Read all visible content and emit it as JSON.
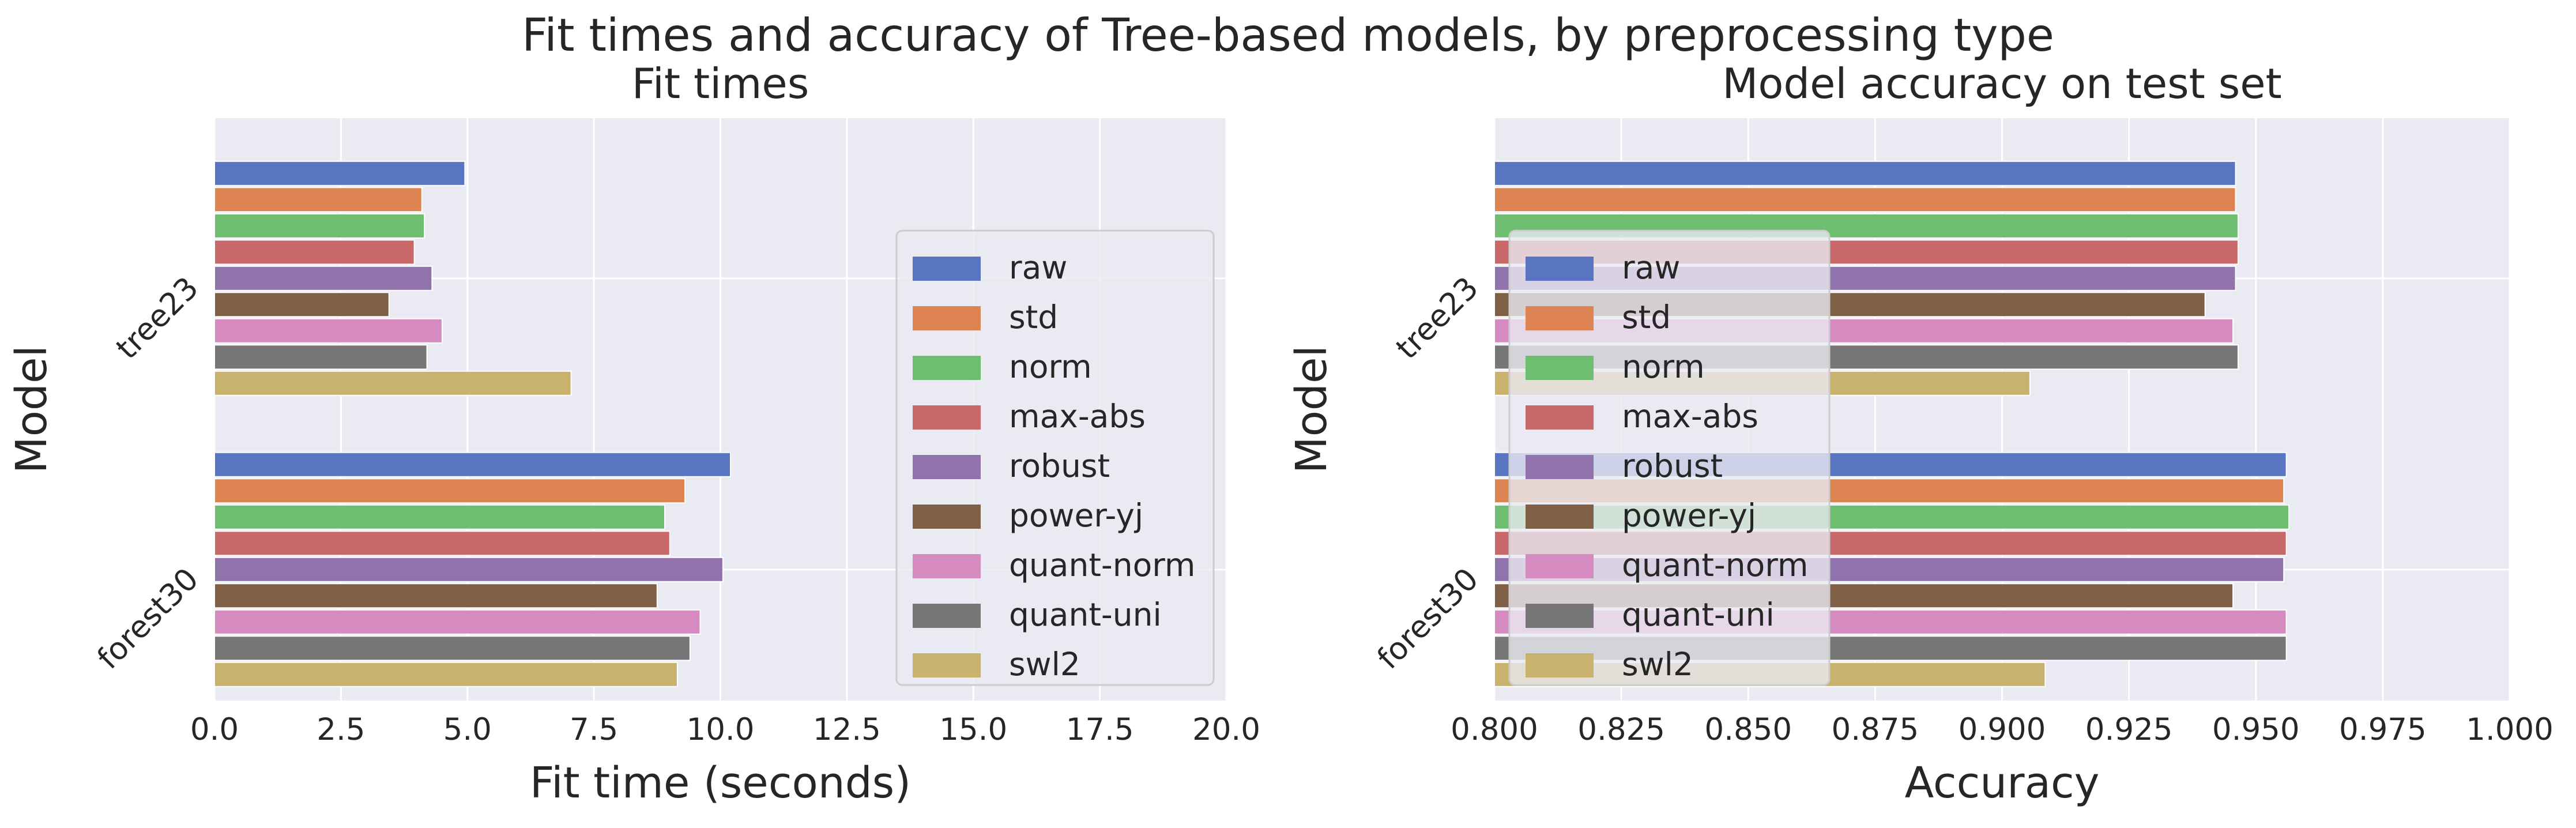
{
  "suptitle": "Fit times and accuracy of Tree-based models, by preprocessing type",
  "legend_entries": [
    "raw",
    "std",
    "norm",
    "max-abs",
    "robust",
    "power-yj",
    "quant-norm",
    "quant-uni",
    "swl2"
  ],
  "colors": {
    "raw": "#5975c1",
    "std": "#dd8452",
    "norm": "#6fbd71",
    "max-abs": "#c86868",
    "robust": "#9173ac",
    "power-yj": "#7f5f45",
    "quant-norm": "#d68bc0",
    "quant-uni": "#777777",
    "swl2": "#c8b26e",
    "plot_background": "#eaeaf2",
    "grid": "#ffffff"
  },
  "chart_data": [
    {
      "type": "bar",
      "orientation": "horizontal",
      "title": "Fit times",
      "xlabel": "Fit time (seconds)",
      "ylabel": "Model",
      "categories": [
        "tree23",
        "forest30"
      ],
      "xlim": [
        0,
        20
      ],
      "xticks": [
        "0.0",
        "2.5",
        "5.0",
        "7.5",
        "10.0",
        "12.5",
        "15.0",
        "17.5",
        "20.0"
      ],
      "xtick_values": [
        0,
        2.5,
        5,
        7.5,
        10,
        12.5,
        15,
        17.5,
        20
      ],
      "grid": true,
      "legend_position": "center-right",
      "series": [
        {
          "name": "raw",
          "values": [
            4.95,
            10.2
          ]
        },
        {
          "name": "std",
          "values": [
            4.1,
            9.3
          ]
        },
        {
          "name": "norm",
          "values": [
            4.15,
            8.9
          ]
        },
        {
          "name": "max-abs",
          "values": [
            3.95,
            9.0
          ]
        },
        {
          "name": "robust",
          "values": [
            4.3,
            10.05
          ]
        },
        {
          "name": "power-yj",
          "values": [
            3.45,
            8.75
          ]
        },
        {
          "name": "quant-norm",
          "values": [
            4.5,
            9.6
          ]
        },
        {
          "name": "quant-uni",
          "values": [
            4.2,
            9.4
          ]
        },
        {
          "name": "swl2",
          "values": [
            7.05,
            9.15
          ]
        }
      ]
    },
    {
      "type": "bar",
      "orientation": "horizontal",
      "title": "Model accuracy on test set",
      "xlabel": "Accuracy",
      "ylabel": "Model",
      "categories": [
        "tree23",
        "forest30"
      ],
      "xlim": [
        0.8,
        1.0
      ],
      "xticks": [
        "0.800",
        "0.825",
        "0.850",
        "0.875",
        "0.900",
        "0.925",
        "0.950",
        "0.975",
        "1.000"
      ],
      "xtick_values": [
        0.8,
        0.825,
        0.85,
        0.875,
        0.9,
        0.925,
        0.95,
        0.975,
        1.0
      ],
      "grid": true,
      "legend_position": "center-left",
      "series": [
        {
          "name": "raw",
          "values": [
            0.946,
            0.956
          ]
        },
        {
          "name": "std",
          "values": [
            0.946,
            0.9555
          ]
        },
        {
          "name": "norm",
          "values": [
            0.9465,
            0.9565
          ]
        },
        {
          "name": "max-abs",
          "values": [
            0.9465,
            0.956
          ]
        },
        {
          "name": "robust",
          "values": [
            0.946,
            0.9555
          ]
        },
        {
          "name": "power-yj",
          "values": [
            0.94,
            0.9455
          ]
        },
        {
          "name": "quant-norm",
          "values": [
            0.9455,
            0.956
          ]
        },
        {
          "name": "quant-uni",
          "values": [
            0.9465,
            0.956
          ]
        },
        {
          "name": "swl2",
          "values": [
            0.9055,
            0.9085
          ]
        }
      ]
    }
  ]
}
